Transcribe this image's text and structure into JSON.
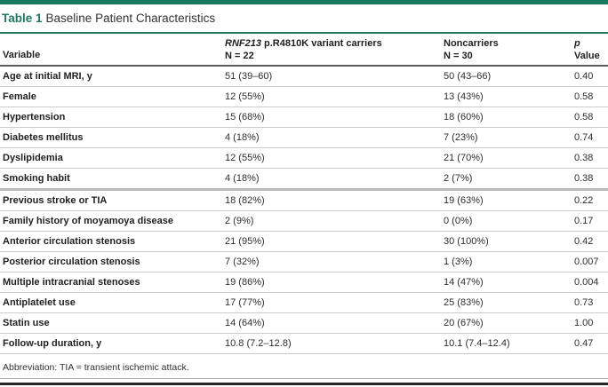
{
  "colors": {
    "accent_green": "#1b7a5e",
    "header_rule": "#5a5a5a",
    "row_rule": "#cccccc",
    "group_rule": "#b9b9b9",
    "bottom_rule": "#262626"
  },
  "title": {
    "label": "Table 1",
    "text": "Baseline Patient Characteristics"
  },
  "table": {
    "header": {
      "variable": "Variable",
      "carriers_gene": "RNF213",
      "carriers_rest": " p.R4810K variant carriers",
      "carriers_n": "N = 22",
      "noncarriers": "Noncarriers",
      "noncarriers_n": "N = 30",
      "p_italic": "p",
      "p_rest": " Value"
    },
    "thick_divider_after_index": 5,
    "rows": [
      {
        "label": "Age at initial MRI, y",
        "carriers": "51 (39–60)",
        "noncarriers": "50 (43–66)",
        "p_value": "0.40"
      },
      {
        "label": "Female",
        "carriers": "12 (55%)",
        "noncarriers": "13 (43%)",
        "p_value": "0.58"
      },
      {
        "label": "Hypertension",
        "carriers": "15 (68%)",
        "noncarriers": "18 (60%)",
        "p_value": "0.58"
      },
      {
        "label": "Diabetes mellitus",
        "carriers": "4 (18%)",
        "noncarriers": "7 (23%)",
        "p_value": "0.74"
      },
      {
        "label": "Dyslipidemia",
        "carriers": "12 (55%)",
        "noncarriers": "21 (70%)",
        "p_value": "0.38"
      },
      {
        "label": "Smoking habit",
        "carriers": "4 (18%)",
        "noncarriers": "2 (7%)",
        "p_value": "0.38"
      },
      {
        "label": "Previous stroke or TIA",
        "carriers": "18 (82%)",
        "noncarriers": "19 (63%)",
        "p_value": "0.22"
      },
      {
        "label": "Family history of moyamoya disease",
        "carriers": "2 (9%)",
        "noncarriers": "0 (0%)",
        "p_value": "0.17"
      },
      {
        "label": "Anterior circulation stenosis",
        "carriers": "21 (95%)",
        "noncarriers": "30 (100%)",
        "p_value": "0.42"
      },
      {
        "label": "Posterior circulation stenosis",
        "carriers": "7 (32%)",
        "noncarriers": "1 (3%)",
        "p_value": "0.007"
      },
      {
        "label": "Multiple intracranial stenoses",
        "carriers": "19 (86%)",
        "noncarriers": "14 (47%)",
        "p_value": "0.004"
      },
      {
        "label": "Antiplatelet use",
        "carriers": "17 (77%)",
        "noncarriers": "25 (83%)",
        "p_value": "0.73"
      },
      {
        "label": "Statin use",
        "carriers": "14 (64%)",
        "noncarriers": "20 (67%)",
        "p_value": "1.00"
      },
      {
        "label": "Follow-up duration, y",
        "carriers": "10.8 (7.2–12.8)",
        "noncarriers": "10.1 (7.4–12.4)",
        "p_value": "0.47"
      }
    ]
  },
  "footnote": "Abbreviation: TIA = transient ischemic attack."
}
